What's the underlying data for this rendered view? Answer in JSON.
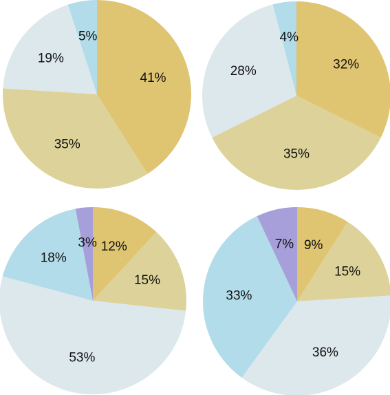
{
  "chart_data": [
    {
      "type": "pie",
      "slices": [
        {
          "label": "41%",
          "value": 41,
          "color": "#DFC471"
        },
        {
          "label": "35%",
          "value": 35,
          "color": "#DDD39A"
        },
        {
          "label": "19%",
          "value": 19,
          "color": "#DDE8EC"
        },
        {
          "label": "5%",
          "value": 5,
          "color": "#B2DCE9"
        }
      ]
    },
    {
      "type": "pie",
      "slices": [
        {
          "label": "32%",
          "value": 32,
          "color": "#DFC471"
        },
        {
          "label": "35%",
          "value": 35,
          "color": "#DDD39A"
        },
        {
          "label": "28%",
          "value": 28,
          "color": "#DDE8EC"
        },
        {
          "label": "4%",
          "value": 4,
          "color": "#B2DCE9"
        }
      ]
    },
    {
      "type": "pie",
      "slices": [
        {
          "label": "12%",
          "value": 12,
          "color": "#DFC471"
        },
        {
          "label": "15%",
          "value": 15,
          "color": "#DDD39A"
        },
        {
          "label": "53%",
          "value": 53,
          "color": "#DDE8EC"
        },
        {
          "label": "18%",
          "value": 18,
          "color": "#B2DCE9"
        },
        {
          "label": "3%",
          "value": 3,
          "color": "#A79FD9"
        }
      ]
    },
    {
      "type": "pie",
      "slices": [
        {
          "label": "9%",
          "value": 9,
          "color": "#DFC471"
        },
        {
          "label": "15%",
          "value": 15,
          "color": "#DDD39A"
        },
        {
          "label": "36%",
          "value": 36,
          "color": "#DDE8EC"
        },
        {
          "label": "33%",
          "value": 33,
          "color": "#B2DCE9"
        },
        {
          "label": "7%",
          "value": 7,
          "color": "#A79FD9"
        }
      ]
    }
  ]
}
